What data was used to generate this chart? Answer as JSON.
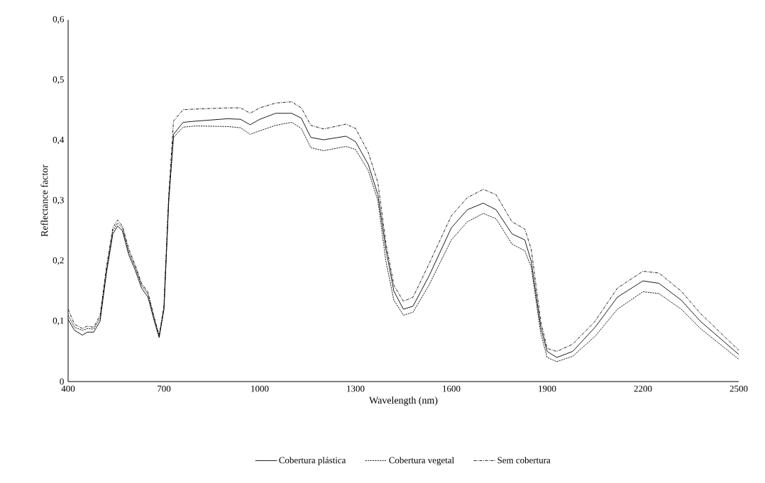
{
  "chart_data": {
    "type": "line",
    "xlabel": "Wavelength (nm)",
    "ylabel": "Reflectance factor",
    "x": [
      400,
      420,
      445,
      460,
      480,
      500,
      520,
      540,
      555,
      570,
      590,
      610,
      630,
      650,
      670,
      685,
      700,
      715,
      730,
      760,
      800,
      900,
      940,
      970,
      1000,
      1050,
      1100,
      1130,
      1160,
      1200,
      1270,
      1300,
      1340,
      1370,
      1395,
      1420,
      1450,
      1480,
      1530,
      1600,
      1650,
      1700,
      1740,
      1790,
      1830,
      1850,
      1880,
      1900,
      1930,
      1980,
      2050,
      2120,
      2200,
      2250,
      2320,
      2380,
      2500
    ],
    "series": [
      {
        "name": "Cobertura plástica",
        "color": "#000000",
        "line_style": "solid",
        "values": [
          0.103,
          0.085,
          0.077,
          0.082,
          0.082,
          0.1,
          0.18,
          0.245,
          0.258,
          0.25,
          0.21,
          0.185,
          0.155,
          0.14,
          0.1,
          0.073,
          0.12,
          0.3,
          0.41,
          0.43,
          0.432,
          0.436,
          0.435,
          0.426,
          0.435,
          0.445,
          0.445,
          0.437,
          0.405,
          0.401,
          0.407,
          0.398,
          0.36,
          0.31,
          0.22,
          0.15,
          0.12,
          0.125,
          0.175,
          0.255,
          0.285,
          0.296,
          0.285,
          0.245,
          0.235,
          0.2,
          0.09,
          0.05,
          0.04,
          0.05,
          0.09,
          0.14,
          0.167,
          0.163,
          0.135,
          0.1,
          0.045
        ]
      },
      {
        "name": "Cobertura vegetal",
        "color": "#000000",
        "line_style": "dashed",
        "values": [
          0.11,
          0.09,
          0.085,
          0.088,
          0.087,
          0.105,
          0.185,
          0.25,
          0.263,
          0.255,
          0.215,
          0.19,
          0.16,
          0.145,
          0.105,
          0.075,
          0.12,
          0.3,
          0.405,
          0.422,
          0.424,
          0.423,
          0.421,
          0.41,
          0.416,
          0.425,
          0.43,
          0.42,
          0.388,
          0.383,
          0.39,
          0.385,
          0.35,
          0.3,
          0.2,
          0.135,
          0.11,
          0.115,
          0.16,
          0.235,
          0.265,
          0.279,
          0.27,
          0.228,
          0.217,
          0.19,
          0.08,
          0.04,
          0.033,
          0.042,
          0.075,
          0.12,
          0.149,
          0.146,
          0.12,
          0.088,
          0.037
        ]
      },
      {
        "name": "Sem cobertura",
        "color": "#000000",
        "line_style": "dashdot",
        "values": [
          0.12,
          0.095,
          0.088,
          0.092,
          0.09,
          0.11,
          0.19,
          0.255,
          0.268,
          0.258,
          0.22,
          0.193,
          0.163,
          0.148,
          0.105,
          0.077,
          0.125,
          0.31,
          0.432,
          0.451,
          0.452,
          0.454,
          0.454,
          0.445,
          0.454,
          0.462,
          0.464,
          0.454,
          0.425,
          0.419,
          0.427,
          0.42,
          0.38,
          0.33,
          0.23,
          0.16,
          0.133,
          0.14,
          0.195,
          0.275,
          0.305,
          0.319,
          0.31,
          0.265,
          0.253,
          0.22,
          0.1,
          0.055,
          0.05,
          0.062,
          0.1,
          0.155,
          0.183,
          0.18,
          0.15,
          0.113,
          0.052
        ]
      }
    ],
    "xlim": [
      400,
      2500
    ],
    "xticks": [
      400,
      700,
      1000,
      1300,
      1600,
      1900,
      2200,
      2500
    ],
    "ylim": [
      0,
      0.6
    ],
    "yticks": [
      0,
      {
        "value": 0.1,
        "label": "0,1"
      },
      {
        "value": 0.2,
        "label": "0,2"
      },
      {
        "value": 0.3,
        "label": "0,3"
      },
      {
        "value": 0.4,
        "label": "0,4"
      },
      {
        "value": 0.5,
        "label": "0,5"
      },
      {
        "value": 0.6,
        "label": "0,6"
      }
    ],
    "grid": false,
    "legend": "bottom",
    "marker": "none"
  }
}
